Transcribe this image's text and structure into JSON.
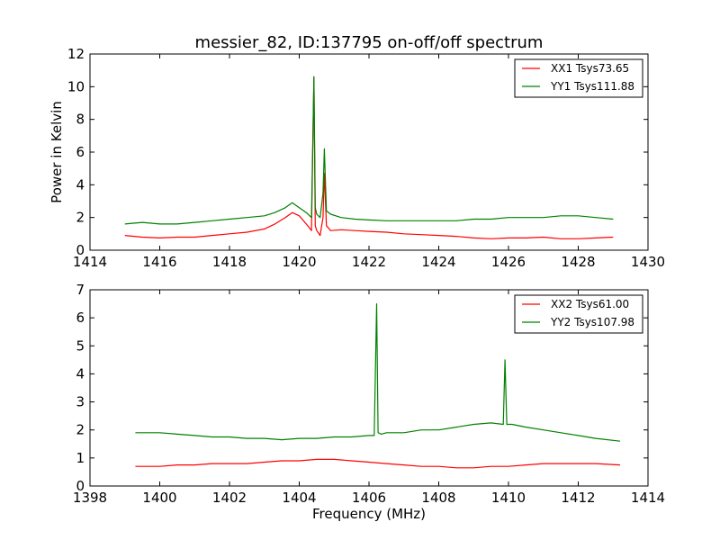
{
  "chart_data": [
    {
      "type": "line",
      "title": "messier_82, ID:137795 on-off/off spectrum",
      "xlabel": "",
      "ylabel": "Power in Kelvin",
      "xlim": [
        1414,
        1430
      ],
      "ylim": [
        0,
        12
      ],
      "xticks": [
        "1414",
        "1416",
        "1418",
        "1420",
        "1422",
        "1424",
        "1426",
        "1428",
        "1430"
      ],
      "yticks": [
        "0",
        "2",
        "4",
        "6",
        "8",
        "10",
        "12"
      ],
      "legend_position": "top-right",
      "series": [
        {
          "name": "XX1 Tsys73.65",
          "color": "#ff0000",
          "x": [
            1415.0,
            1415.5,
            1416.0,
            1416.5,
            1417.0,
            1417.5,
            1418.0,
            1418.5,
            1419.0,
            1419.3,
            1419.6,
            1419.8,
            1420.0,
            1420.2,
            1420.35,
            1420.42,
            1420.46,
            1420.5,
            1420.6,
            1420.68,
            1420.72,
            1420.78,
            1420.9,
            1421.2,
            1421.6,
            1422.0,
            1422.5,
            1423.0,
            1423.5,
            1424.0,
            1424.5,
            1425.0,
            1425.5,
            1426.0,
            1426.5,
            1427.0,
            1427.5,
            1428.0,
            1428.5,
            1429.0
          ],
          "y": [
            0.9,
            0.8,
            0.75,
            0.8,
            0.8,
            0.9,
            1.0,
            1.1,
            1.3,
            1.6,
            2.0,
            2.3,
            2.1,
            1.6,
            1.2,
            10.6,
            1.5,
            1.2,
            0.9,
            2.0,
            4.7,
            1.5,
            1.2,
            1.25,
            1.2,
            1.15,
            1.1,
            1.0,
            0.95,
            0.9,
            0.85,
            0.75,
            0.7,
            0.75,
            0.75,
            0.8,
            0.7,
            0.7,
            0.75,
            0.8
          ]
        },
        {
          "name": "YY1 Tsys111.88",
          "color": "#008000",
          "x": [
            1415.0,
            1415.5,
            1416.0,
            1416.5,
            1417.0,
            1417.5,
            1418.0,
            1418.5,
            1419.0,
            1419.3,
            1419.6,
            1419.8,
            1420.0,
            1420.2,
            1420.35,
            1420.42,
            1420.46,
            1420.5,
            1420.6,
            1420.68,
            1420.72,
            1420.78,
            1420.9,
            1421.2,
            1421.6,
            1422.0,
            1422.5,
            1423.0,
            1423.5,
            1424.0,
            1424.5,
            1425.0,
            1425.5,
            1426.0,
            1426.5,
            1427.0,
            1427.5,
            1428.0,
            1428.5,
            1429.0
          ],
          "y": [
            1.6,
            1.7,
            1.6,
            1.6,
            1.7,
            1.8,
            1.9,
            2.0,
            2.1,
            2.3,
            2.6,
            2.9,
            2.6,
            2.3,
            2.0,
            10.6,
            2.6,
            2.2,
            2.0,
            3.5,
            6.2,
            2.4,
            2.2,
            2.0,
            1.9,
            1.85,
            1.8,
            1.8,
            1.8,
            1.8,
            1.8,
            1.9,
            1.9,
            2.0,
            2.0,
            2.0,
            2.1,
            2.1,
            2.0,
            1.9
          ]
        }
      ]
    },
    {
      "type": "line",
      "title": "",
      "xlabel": "Frequency (MHz)",
      "ylabel": "",
      "xlim": [
        1398,
        1414
      ],
      "ylim": [
        0,
        7
      ],
      "xticks": [
        "1398",
        "1400",
        "1402",
        "1404",
        "1406",
        "1408",
        "1410",
        "1412",
        "1414"
      ],
      "yticks": [
        "0",
        "1",
        "2",
        "3",
        "4",
        "5",
        "6",
        "7"
      ],
      "legend_position": "top-right",
      "series": [
        {
          "name": "XX2 Tsys61.00",
          "color": "#ff0000",
          "x": [
            1399.3,
            1400.0,
            1400.5,
            1401.0,
            1401.5,
            1402.0,
            1402.5,
            1403.0,
            1403.5,
            1404.0,
            1404.5,
            1405.0,
            1405.5,
            1406.0,
            1406.5,
            1407.0,
            1407.5,
            1408.0,
            1408.5,
            1409.0,
            1409.5,
            1410.0,
            1410.5,
            1411.0,
            1411.5,
            1412.0,
            1412.5,
            1413.2
          ],
          "y": [
            0.7,
            0.7,
            0.75,
            0.75,
            0.8,
            0.8,
            0.8,
            0.85,
            0.9,
            0.9,
            0.95,
            0.95,
            0.9,
            0.85,
            0.8,
            0.75,
            0.7,
            0.7,
            0.65,
            0.65,
            0.7,
            0.7,
            0.75,
            0.8,
            0.8,
            0.8,
            0.8,
            0.75
          ]
        },
        {
          "name": "YY2 Tsys107.98",
          "color": "#008000",
          "x": [
            1399.3,
            1400.0,
            1400.5,
            1401.0,
            1401.5,
            1402.0,
            1402.5,
            1403.0,
            1403.5,
            1404.0,
            1404.5,
            1405.0,
            1405.5,
            1406.0,
            1406.15,
            1406.22,
            1406.26,
            1406.35,
            1406.5,
            1407.0,
            1407.5,
            1408.0,
            1408.5,
            1409.0,
            1409.5,
            1409.85,
            1409.9,
            1409.95,
            1410.1,
            1410.5,
            1411.0,
            1411.5,
            1412.0,
            1412.5,
            1413.2
          ],
          "y": [
            1.9,
            1.9,
            1.85,
            1.8,
            1.75,
            1.75,
            1.7,
            1.7,
            1.65,
            1.7,
            1.7,
            1.75,
            1.75,
            1.8,
            1.8,
            6.5,
            1.9,
            1.85,
            1.9,
            1.9,
            2.0,
            2.0,
            2.1,
            2.2,
            2.25,
            2.2,
            4.5,
            2.2,
            2.2,
            2.1,
            2.0,
            1.9,
            1.8,
            1.7,
            1.6
          ]
        }
      ]
    }
  ]
}
